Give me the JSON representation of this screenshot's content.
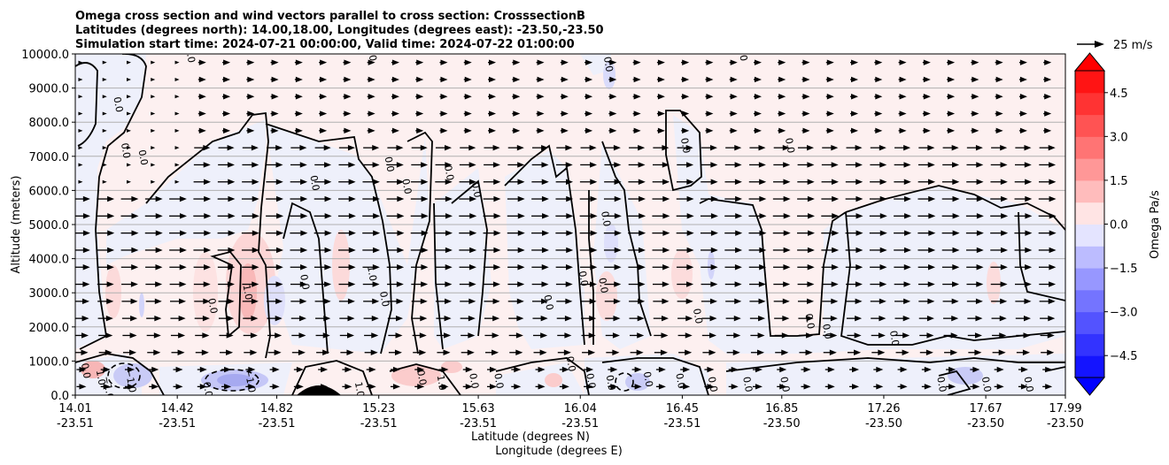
{
  "chart_data": {
    "type": "contourf-with-vectors",
    "title_lines": [
      "Omega cross section and wind vectors parallel to cross section: CrosssectionB",
      "Latitudes (degrees north): 14.00,18.00, Longitudes (degrees east): -23.50,-23.50",
      "Simulation start time: 2024-07-21 00:00:00, Valid time: 2024-07-22 01:00:00"
    ],
    "ylabel": "Altitude (meters)",
    "xlabel_line1": "Latitude (degrees N)",
    "xlabel_line2": "Longitude (degrees E)",
    "ylim": [
      0,
      10000
    ],
    "yticks": [
      "0.0",
      "1000.0",
      "2000.0",
      "3000.0",
      "4000.0",
      "5000.0",
      "6000.0",
      "7000.0",
      "8000.0",
      "9000.0",
      "10000.0"
    ],
    "ytick_values": [
      0,
      1000,
      2000,
      3000,
      4000,
      5000,
      6000,
      7000,
      8000,
      9000,
      10000
    ],
    "x_range": [
      14.01,
      17.99
    ],
    "xticks": [
      {
        "lat": "14.01",
        "lon": "-23.51",
        "value": 14.01
      },
      {
        "lat": "14.42",
        "lon": "-23.51",
        "value": 14.42
      },
      {
        "lat": "14.82",
        "lon": "-23.51",
        "value": 14.82
      },
      {
        "lat": "15.23",
        "lon": "-23.51",
        "value": 15.23
      },
      {
        "lat": "15.63",
        "lon": "-23.51",
        "value": 15.63
      },
      {
        "lat": "16.04",
        "lon": "-23.51",
        "value": 16.04
      },
      {
        "lat": "16.45",
        "lon": "-23.51",
        "value": 16.45
      },
      {
        "lat": "16.85",
        "lon": "-23.50",
        "value": 16.85
      },
      {
        "lat": "17.26",
        "lon": "-23.50",
        "value": 17.26
      },
      {
        "lat": "17.67",
        "lon": "-23.50",
        "value": 17.67
      },
      {
        "lat": "17.99",
        "lon": "-23.50",
        "value": 17.99
      }
    ],
    "grid": true,
    "colorbar": {
      "label": "Omega Pa/s",
      "range": [
        -5.25,
        5.25
      ],
      "ticks": [
        "4.5",
        "3.0",
        "1.5",
        "0.0",
        "−1.5",
        "−3.0",
        "−4.5"
      ],
      "tick_values": [
        4.5,
        3.0,
        1.5,
        0.0,
        -1.5,
        -3.0,
        -4.5
      ],
      "colormap": "bwr",
      "extend": "both"
    },
    "quiver_key": {
      "label": "25 m/s",
      "value": 25
    },
    "contour_labels": [
      {
        "text": "0.0",
        "x": 14.17,
        "y": 8500
      },
      {
        "text": "0.0",
        "x": 14.46,
        "y": 9950
      },
      {
        "text": "0.0",
        "x": 14.2,
        "y": 7150
      },
      {
        "text": "0.0",
        "x": 14.27,
        "y": 6950
      },
      {
        "text": "0.0",
        "x": 14.96,
        "y": 6200
      },
      {
        "text": "0.0",
        "x": 15.26,
        "y": 6750
      },
      {
        "text": "0.0",
        "x": 15.33,
        "y": 6100
      },
      {
        "text": "0.0",
        "x": 15.19,
        "y": 10000
      },
      {
        "text": "0.0",
        "x": 15.5,
        "y": 6500
      },
      {
        "text": "0.0",
        "x": 15.61,
        "y": 6000
      },
      {
        "text": "0.0",
        "x": 16.14,
        "y": 9680
      },
      {
        "text": "0.0",
        "x": 16.68,
        "y": 10000
      },
      {
        "text": "0.0",
        "x": 16.45,
        "y": 7300
      },
      {
        "text": "0.0",
        "x": 16.87,
        "y": 7300
      },
      {
        "text": "0.0",
        "x": 16.13,
        "y": 5150
      },
      {
        "text": "1.0",
        "x": 15.19,
        "y": 3550
      },
      {
        "text": "0.0",
        "x": 15.24,
        "y": 2800
      },
      {
        "text": "0.0",
        "x": 14.92,
        "y": 3300
      },
      {
        "text": "1.0",
        "x": 14.69,
        "y": 3000
      },
      {
        "text": "0.0",
        "x": 14.55,
        "y": 2600
      },
      {
        "text": "0.0",
        "x": 16.04,
        "y": 3400
      },
      {
        "text": "0.0",
        "x": 16.12,
        "y": 3200
      },
      {
        "text": "0.0",
        "x": 15.9,
        "y": 2700
      },
      {
        "text": "0.0",
        "x": 16.5,
        "y": 2300
      },
      {
        "text": "0.0",
        "x": 16.95,
        "y": 2150
      },
      {
        "text": "0.0",
        "x": 17.02,
        "y": 1850
      },
      {
        "text": "0.0",
        "x": 17.29,
        "y": 1650
      },
      {
        "text": "0.0",
        "x": 14.04,
        "y": 700
      },
      {
        "text": "1.0",
        "x": 14.1,
        "y": 500
      },
      {
        "text": "−1.0",
        "x": 14.13,
        "y": 200
      },
      {
        "text": "−1.0",
        "x": 14.22,
        "y": 400
      },
      {
        "text": "−1.0",
        "x": 14.7,
        "y": 400
      },
      {
        "text": "0.0",
        "x": 14.53,
        "y": 150
      },
      {
        "text": "1.0",
        "x": 15.14,
        "y": 150
      },
      {
        "text": "0.0",
        "x": 15.39,
        "y": 500
      },
      {
        "text": "1.0",
        "x": 15.47,
        "y": 350
      },
      {
        "text": "0.0",
        "x": 15.6,
        "y": 400
      },
      {
        "text": "0.0",
        "x": 15.7,
        "y": 400
      },
      {
        "text": "0.0",
        "x": 15.99,
        "y": 900
      },
      {
        "text": "0.0",
        "x": 16.07,
        "y": 400
      },
      {
        "text": "0.0",
        "x": 16.15,
        "y": 350
      },
      {
        "text": "0.0",
        "x": 16.3,
        "y": 450
      },
      {
        "text": "0.0",
        "x": 16.43,
        "y": 400
      },
      {
        "text": "0.0",
        "x": 16.56,
        "y": 300
      },
      {
        "text": "0.0",
        "x": 16.7,
        "y": 300
      },
      {
        "text": "0.0",
        "x": 16.85,
        "y": 300
      },
      {
        "text": "0.0",
        "x": 17.48,
        "y": 300
      },
      {
        "text": "0.0",
        "x": 17.66,
        "y": 300
      },
      {
        "text": "0.0",
        "x": 17.83,
        "y": 300
      }
    ]
  }
}
